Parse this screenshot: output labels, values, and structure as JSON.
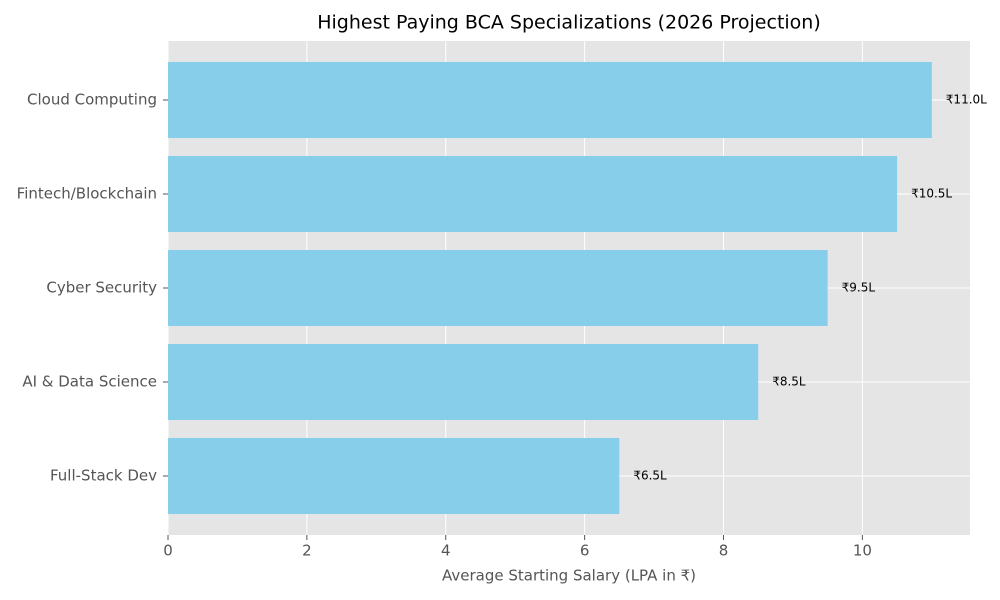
{
  "chart_data": {
    "type": "barh",
    "title": "Highest Paying BCA Specializations (2026 Projection)",
    "x_label": "Average Starting Salary (LPA in ₹)",
    "categories": [
      "Cloud Computing",
      "Fintech/Blockchain",
      "Cyber Security",
      "AI & Data Science",
      "Full-Stack Dev"
    ],
    "values": [
      11.0,
      10.5,
      9.5,
      8.5,
      6.5
    ],
    "value_labels": [
      "₹11.0L",
      "₹10.5L",
      "₹9.5L",
      "₹8.5L",
      "₹6.5L"
    ],
    "color": "#87ceeb",
    "xlim": [
      0,
      11.55
    ],
    "xticks": [
      0,
      2,
      4,
      6,
      8,
      10
    ],
    "grid": true
  }
}
